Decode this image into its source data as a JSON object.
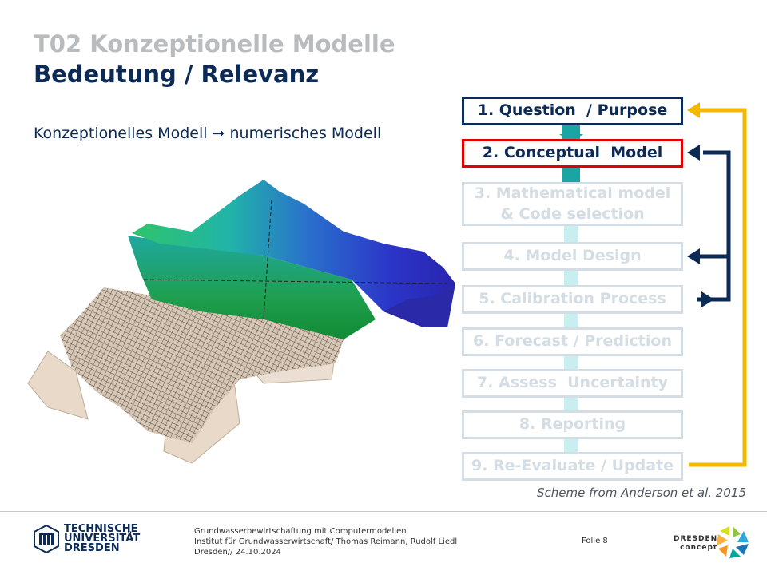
{
  "header": {
    "title_line1": "T02 Konzeptionelle Modelle",
    "title_line2": "Bedeutung / Relevanz",
    "subtitle_left": "Konzeptionelles Modell",
    "subtitle_arrow": "➞",
    "subtitle_right": "numerisches Modell"
  },
  "diagram": {
    "steps": [
      {
        "label": "1. Question  / Purpose",
        "state": "active"
      },
      {
        "label": "2. Conceptual  Model",
        "state": "highlight"
      },
      {
        "label": "3. Mathematical model\n& Code selection",
        "state": "inactive"
      },
      {
        "label": "4. Model Design",
        "state": "inactive"
      },
      {
        "label": "5. Calibration Process",
        "state": "inactive"
      },
      {
        "label": "6. Forecast / Prediction",
        "state": "inactive"
      },
      {
        "label": "7. Assess  Uncertainty",
        "state": "inactive"
      },
      {
        "label": "8. Reporting",
        "state": "inactive"
      },
      {
        "label": "9. Re-Evaluate / Update",
        "state": "inactive"
      }
    ],
    "colors": {
      "navy": "#0b2a56",
      "red": "#e00000",
      "yellow": "#f5b800",
      "teal": "#1aa5a5",
      "inactive": "#d3dde3"
    },
    "source": "Scheme from Anderson et al. 2015"
  },
  "footer": {
    "logo_line1": "TECHNISCHE",
    "logo_line2": "UNIVERSITÄT",
    "logo_line3": "DRESDEN",
    "info_line1": "Grundwasserbewirtschaftung mit Computermodellen",
    "info_line2": "Institut für Grundwasserwirtschaft/ Thomas Reimann, Rudolf Liedl",
    "info_line3": "Dresden// 24.10.2024",
    "folio": "Folie 8",
    "dc_line1": "DRESDEN",
    "dc_line2": "concept"
  }
}
